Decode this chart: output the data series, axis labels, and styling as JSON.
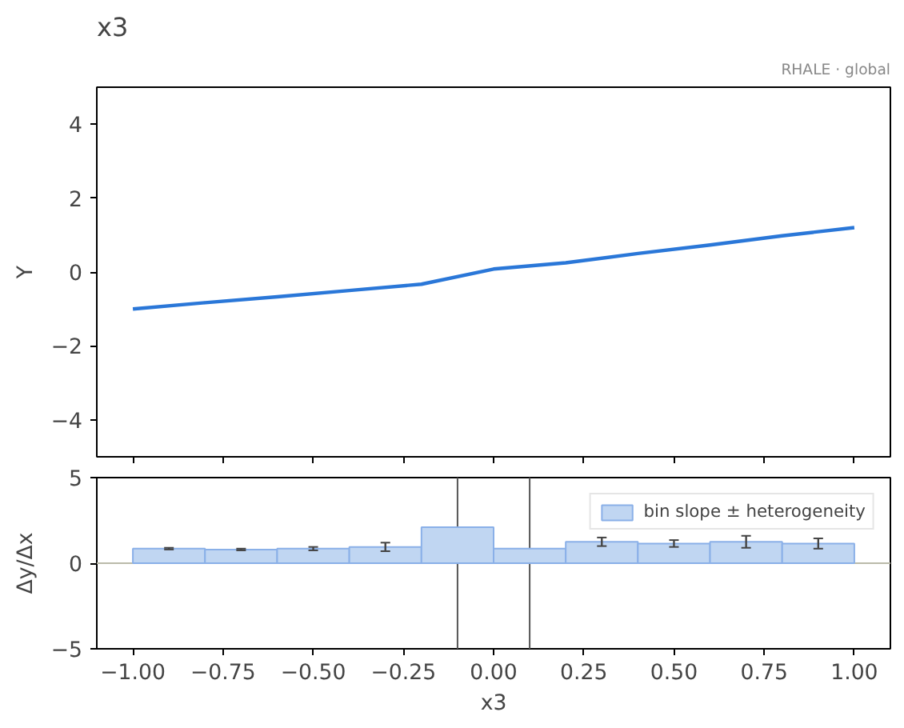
{
  "chart_data": [
    {
      "type": "line",
      "title": "x3",
      "ylabel": "Y",
      "annotations": [
        "RHALE · global"
      ],
      "x": [
        -1.0,
        -0.8,
        -0.6,
        -0.4,
        -0.2,
        0.0,
        0.2,
        0.4,
        0.6,
        0.8,
        1.0
      ],
      "series": [
        {
          "color": "#2a77d8",
          "values": [
            -1.0,
            -0.83,
            -0.67,
            -0.5,
            -0.33,
            0.08,
            0.25,
            0.5,
            0.73,
            0.98,
            1.2
          ]
        }
      ],
      "xlim": [
        -1.1,
        1.1
      ],
      "xticks": [
        -1.0,
        -0.75,
        -0.5,
        -0.25,
        0.0,
        0.25,
        0.5,
        0.75,
        1.0
      ],
      "ylim": [
        -5,
        5
      ],
      "yticks": [
        {
          "value": -4,
          "label": "−4"
        },
        {
          "value": -2,
          "label": "−2"
        },
        0,
        2,
        4
      ],
      "tick_labels": "y",
      "grid": false,
      "legend": false
    },
    {
      "type": "bar",
      "xlabel": "x3",
      "ylabel": "Δy/Δx",
      "x": [
        -0.9,
        -0.7,
        -0.5,
        -0.3,
        -0.1,
        0.1,
        0.3,
        0.5,
        0.7,
        0.9
      ],
      "series": [
        {
          "name": "bin slope ± heterogeneity",
          "color": "#c0d6f2",
          "values": [
            0.85,
            0.8,
            0.85,
            0.95,
            2.1,
            0.85,
            1.25,
            1.15,
            1.25,
            1.15
          ],
          "errors": [
            0.05,
            0.05,
            0.1,
            0.25,
            null,
            null,
            0.25,
            0.2,
            0.35,
            0.3
          ]
        }
      ],
      "xlim": [
        -1.1,
        1.1
      ],
      "xticks": [
        {
          "value": -1.0,
          "label": "−1.00"
        },
        {
          "value": -0.75,
          "label": "−0.75"
        },
        {
          "value": -0.5,
          "label": "−0.50"
        },
        {
          "value": -0.25,
          "label": "−0.25"
        },
        {
          "value": 0.0,
          "label": "0.00"
        },
        {
          "value": 0.25,
          "label": "0.25"
        },
        {
          "value": 0.5,
          "label": "0.50"
        },
        {
          "value": 0.75,
          "label": "0.75"
        },
        {
          "value": 1.0,
          "label": "1.00"
        }
      ],
      "ylim": [
        -5,
        5
      ],
      "yticks": [
        {
          "value": -5,
          "label": "−5"
        },
        0,
        5
      ],
      "ref_lines": [
        {
          "axis": "x",
          "value": -0.1,
          "color": "#555555"
        },
        {
          "axis": "x",
          "value": 0.1,
          "color": "#555555"
        },
        {
          "axis": "y",
          "value": 0,
          "color": "#bbbbaa"
        }
      ],
      "grid": false,
      "legend": "top right"
    }
  ]
}
